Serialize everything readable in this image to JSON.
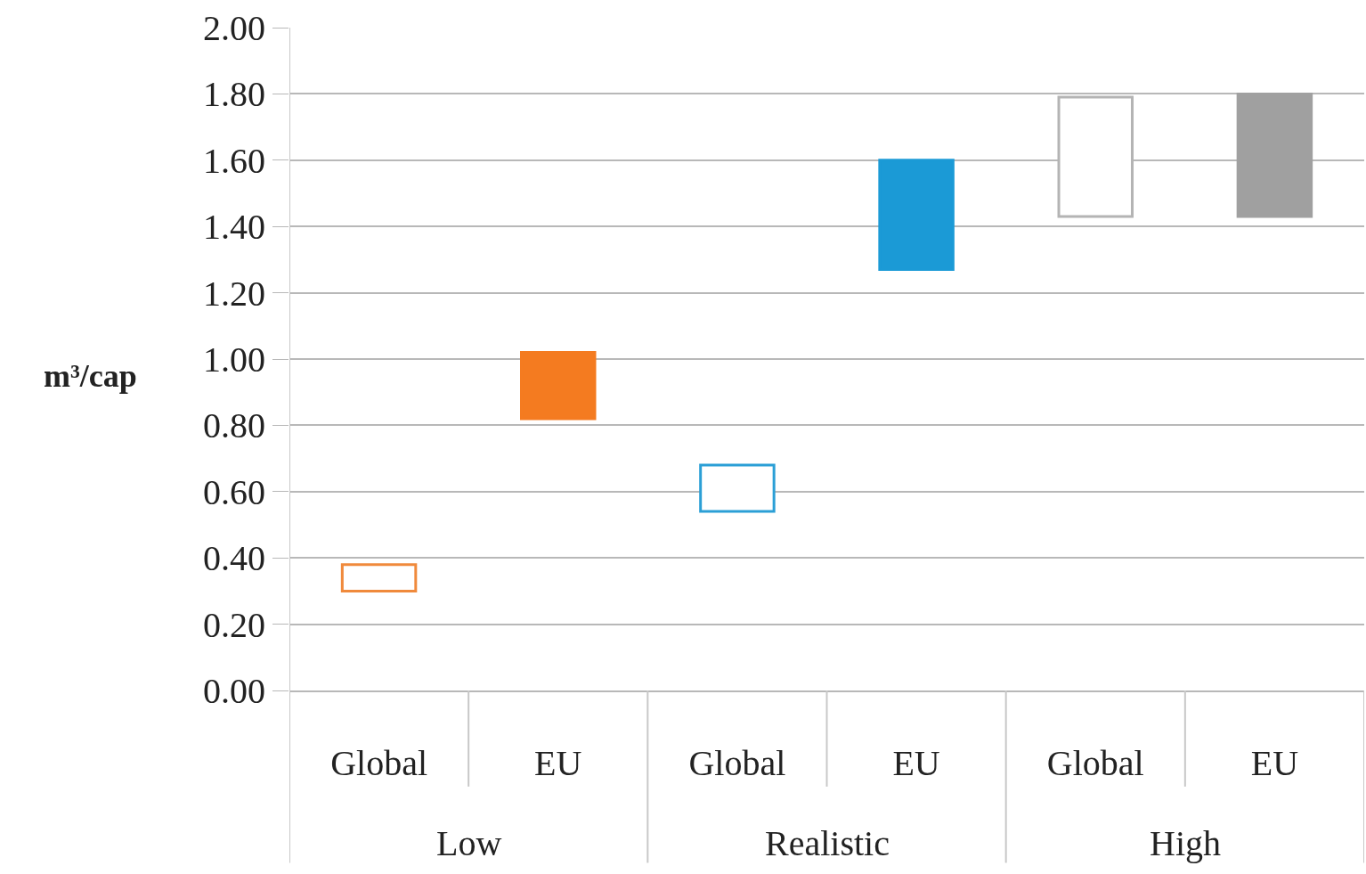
{
  "chart_data": {
    "type": "bar",
    "ylabel": "m³/cap",
    "categories": [
      "Global",
      "EU",
      "Global",
      "EU",
      "Global",
      "EU"
    ],
    "series": [
      {
        "colors": [
          "#f08a3c",
          null,
          "#2b9fd6",
          null,
          "#b4b4b4",
          null
        ],
        "values": [
          0.08,
          null,
          0.14,
          null,
          0.36,
          null
        ],
        "base": [
          0.3,
          null,
          0.54,
          null,
          1.43,
          null
        ]
      },
      {
        "colors": [
          null,
          "#f47b20",
          null,
          "#1b9ad6",
          null,
          "#a0a0a0"
        ],
        "values": [
          null,
          0.2,
          null,
          0.33,
          null,
          0.37
        ],
        "base": [
          null,
          0.82,
          null,
          1.27,
          null,
          1.43
        ]
      }
    ],
    "annotations": [
      "Low",
      "Realistic",
      "High"
    ],
    "ylim": [
      0,
      2
    ],
    "yticks": [
      {
        "value": 0,
        "label": "0.00"
      },
      {
        "value": 0.2,
        "label": "0.20"
      },
      {
        "value": 0.4,
        "label": "0.40"
      },
      {
        "value": 0.6,
        "label": "0.60"
      },
      {
        "value": 0.8,
        "label": "0.80"
      },
      {
        "value": 1,
        "label": "1.00"
      },
      {
        "value": 1.2,
        "label": "1.20"
      },
      {
        "value": 1.4,
        "label": "1.40"
      },
      {
        "value": 1.6,
        "label": "1.60"
      },
      {
        "value": 1.8,
        "label": "1.80"
      },
      {
        "value": 2,
        "label": "2.00"
      }
    ],
    "grid": "y"
  }
}
